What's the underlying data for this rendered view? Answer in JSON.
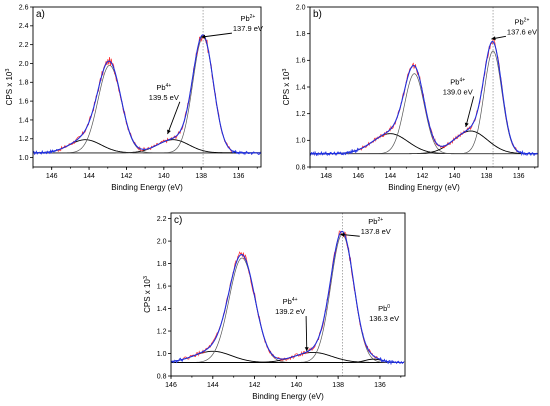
{
  "chart_data": [
    {
      "panel": "a)",
      "type": "line",
      "xlabel": "Binding Energy (eV)",
      "ylabel": "CPS x 10",
      "ylabel_exp": "3",
      "xlim": [
        147,
        134.8
      ],
      "ylim": [
        0.9,
        2.6
      ],
      "x_ticks": [
        146,
        144,
        142,
        140,
        138,
        136
      ],
      "y_ticks": [
        1.0,
        1.2,
        1.4,
        1.6,
        1.8,
        2.0,
        2.2,
        2.4,
        2.6
      ],
      "background": 1.05,
      "peaks": [
        {
          "center": 144.2,
          "height": 0.14,
          "width": 0.85
        },
        {
          "center": 142.9,
          "height": 0.93,
          "width": 0.62
        },
        {
          "center": 139.5,
          "height": 0.14,
          "width": 0.85
        },
        {
          "center": 137.9,
          "height": 1.23,
          "width": 0.55
        }
      ],
      "vline": 137.9,
      "annotations": [
        {
          "label": "Pb",
          "sup": "2+",
          "energy": "137.9 eV",
          "target": [
            138.0,
            2.28
          ],
          "text_at": [
            135.5,
            2.45
          ]
        },
        {
          "label": "Pb",
          "sup": "4+",
          "energy": "139.5 eV",
          "target": [
            139.8,
            1.25
          ],
          "text_at": [
            140.0,
            1.72
          ]
        }
      ]
    },
    {
      "panel": "b)",
      "type": "line",
      "xlabel": "Binding Energy (eV)",
      "ylabel": "CPS x 10",
      "ylabel_exp": "3",
      "xlim": [
        149,
        134.8
      ],
      "ylim": [
        0.8,
        2.0
      ],
      "x_ticks": [
        148,
        146,
        144,
        142,
        140,
        138,
        136
      ],
      "y_ticks": [
        0.8,
        1.0,
        1.2,
        1.4,
        1.6,
        1.8,
        2.0
      ],
      "background": 0.9,
      "peaks": [
        {
          "center": 144.0,
          "height": 0.15,
          "width": 1.1
        },
        {
          "center": 142.5,
          "height": 0.6,
          "width": 0.62
        },
        {
          "center": 139.0,
          "height": 0.17,
          "width": 1.05
        },
        {
          "center": 137.6,
          "height": 0.77,
          "width": 0.55
        }
      ],
      "vline": 137.6,
      "annotations": [
        {
          "label": "Pb",
          "sup": "2+",
          "energy": "137.6 eV",
          "target": [
            137.7,
            1.76
          ],
          "text_at": [
            135.8,
            1.87
          ]
        },
        {
          "label": "Pb",
          "sup": "4+",
          "energy": "139.0 eV",
          "target": [
            139.3,
            1.1
          ],
          "text_at": [
            139.8,
            1.42
          ]
        }
      ]
    },
    {
      "panel": "c)",
      "type": "line",
      "xlabel": "Binding Energy (eV)",
      "ylabel": "CPS x 10",
      "ylabel_exp": "3",
      "xlim": [
        146,
        134.8
      ],
      "ylim": [
        0.8,
        2.25
      ],
      "x_ticks": [
        146,
        144,
        142,
        140,
        138,
        136
      ],
      "y_ticks": [
        0.8,
        1.0,
        1.2,
        1.4,
        1.6,
        1.8,
        2.0,
        2.2
      ],
      "background": 0.92,
      "peaks": [
        {
          "center": 144.0,
          "height": 0.1,
          "width": 0.9
        },
        {
          "center": 142.6,
          "height": 0.93,
          "width": 0.62
        },
        {
          "center": 139.2,
          "height": 0.09,
          "width": 0.9
        },
        {
          "center": 137.8,
          "height": 1.14,
          "width": 0.55
        },
        {
          "center": 136.3,
          "height": 0.03,
          "width": 0.4
        }
      ],
      "vline": 137.8,
      "annotations": [
        {
          "label": "Pb",
          "sup": "2+",
          "energy": "137.8 eV",
          "target": [
            137.9,
            2.06
          ],
          "text_at": [
            136.2,
            2.15
          ]
        },
        {
          "label": "Pb",
          "sup": "4+",
          "energy": "139.2 eV",
          "target": [
            139.5,
            1.02
          ],
          "text_at": [
            140.3,
            1.44
          ]
        },
        {
          "label": "Pb",
          "sup": "0",
          "energy": "136.3 eV",
          "target": [
            136.3,
            0.95
          ],
          "text_at": [
            135.8,
            1.38
          ],
          "no_arrow": true
        }
      ]
    }
  ],
  "colors": {
    "raw": "#ff2a2a",
    "envelope": "#2030dd",
    "baseline_noise": "#1a44ff",
    "component": "#000000",
    "component_thin": "#555555"
  }
}
